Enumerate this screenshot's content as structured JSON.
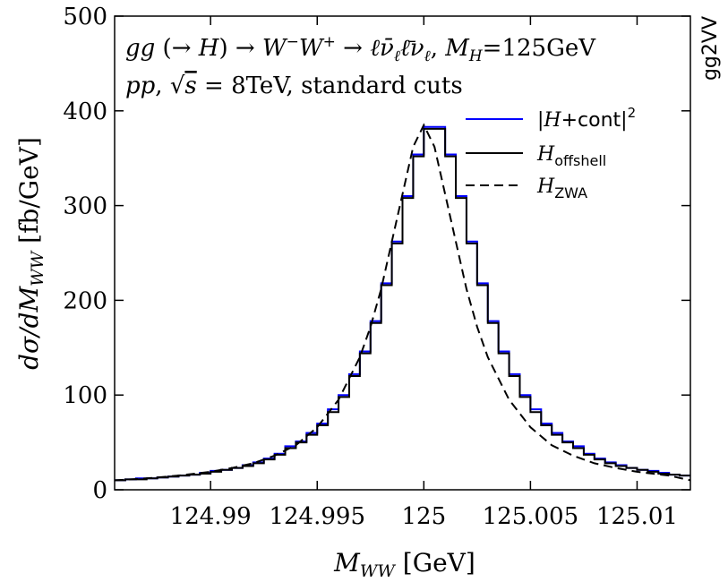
{
  "chart_data": {
    "type": "line",
    "xlabel": "M_WW [GeV]",
    "ylabel": "dσ/dM_WW [fb/GeV]",
    "xlim": [
      124.9855,
      125.0125
    ],
    "ylim": [
      0,
      500
    ],
    "xticks": [
      124.99,
      124.995,
      125,
      125.005,
      125.01
    ],
    "xtick_labels": [
      "124.99",
      "124.995",
      "125",
      "125.005",
      "125.01"
    ],
    "yticks": [
      0,
      100,
      200,
      300,
      400,
      500
    ],
    "ytick_labels": [
      "0",
      "100",
      "200",
      "300",
      "400",
      "500"
    ],
    "annotations": [
      "gg (→ H) → W⁻W⁺ → ℓν̄ℓℓ̄νℓ, MH=125GeV",
      "pp, √s = 8TeV, standard cuts"
    ],
    "side_label": "gg2VV",
    "grid": false,
    "legend_position": "top-right",
    "legend": [
      {
        "label": "|H+cont|²",
        "color": "#0000ff",
        "style": "solid"
      },
      {
        "label": "H_offshell",
        "color": "#000000",
        "style": "solid"
      },
      {
        "label": "H_ZWA",
        "color": "#000000",
        "style": "dashed"
      }
    ],
    "bin_width": 0.0005,
    "series": [
      {
        "name": "|H+cont|²",
        "style": "step",
        "color": "#0000ff",
        "x_bin_edges": [
          124.9855,
          124.986,
          124.9865,
          124.987,
          124.9875,
          124.988,
          124.9885,
          124.989,
          124.9895,
          124.99,
          124.9905,
          124.991,
          124.9915,
          124.992,
          124.9925,
          124.993,
          124.9935,
          124.994,
          124.9945,
          124.995,
          124.9955,
          124.996,
          124.9965,
          124.997,
          124.9975,
          124.998,
          124.9985,
          124.999,
          124.9995,
          125.0,
          125.0005,
          125.001,
          125.0015,
          125.002,
          125.0025,
          125.003,
          125.0035,
          125.004,
          125.0045,
          125.005,
          125.0055,
          125.006,
          125.0065,
          125.007,
          125.0075,
          125.008,
          125.0085,
          125.009,
          125.0095,
          125.01,
          125.0105,
          125.011,
          125.0115,
          125.012,
          125.0125
        ],
        "y": [
          10,
          11,
          12,
          12,
          13,
          14,
          15,
          16,
          18,
          20,
          21,
          23,
          26,
          29,
          33,
          38,
          46,
          51,
          60,
          70,
          85,
          100,
          122,
          146,
          178,
          218,
          262,
          310,
          354,
          383,
          383,
          354,
          310,
          262,
          218,
          178,
          146,
          122,
          100,
          85,
          70,
          60,
          51,
          46,
          38,
          33,
          29,
          26,
          23,
          21,
          20,
          18,
          16,
          15
        ]
      },
      {
        "name": "H_offshell",
        "style": "step",
        "color": "#000000",
        "x_bin_edges": [
          124.9855,
          124.986,
          124.9865,
          124.987,
          124.9875,
          124.988,
          124.9885,
          124.989,
          124.9895,
          124.99,
          124.9905,
          124.991,
          124.9915,
          124.992,
          124.9925,
          124.993,
          124.9935,
          124.994,
          124.9945,
          124.995,
          124.9955,
          124.996,
          124.9965,
          124.997,
          124.9975,
          124.998,
          124.9985,
          124.999,
          124.9995,
          125.0,
          125.0005,
          125.001,
          125.0015,
          125.002,
          125.0025,
          125.003,
          125.0035,
          125.004,
          125.0045,
          125.005,
          125.0055,
          125.006,
          125.0065,
          125.007,
          125.0075,
          125.008,
          125.0085,
          125.009,
          125.0095,
          125.01,
          125.0105,
          125.011,
          125.0115,
          125.012,
          125.0125
        ],
        "y": [
          10,
          11,
          11,
          12,
          13,
          14,
          15,
          16,
          17,
          19,
          21,
          23,
          25,
          28,
          32,
          37,
          44,
          50,
          58,
          68,
          82,
          98,
          120,
          144,
          176,
          216,
          260,
          308,
          352,
          381,
          381,
          352,
          308,
          260,
          216,
          176,
          144,
          120,
          98,
          82,
          68,
          58,
          50,
          44,
          37,
          32,
          28,
          25,
          23,
          21,
          19,
          17,
          16,
          15
        ]
      },
      {
        "name": "H_ZWA",
        "style": "dashed-curve",
        "color": "#000000",
        "x": [
          124.9855,
          124.987,
          124.9885,
          124.99,
          124.991,
          124.992,
          124.993,
          124.994,
          124.995,
          124.996,
          124.997,
          124.9975,
          124.998,
          124.9985,
          124.999,
          124.9995,
          125.0,
          125.0005,
          125.001,
          125.0015,
          125.002,
          125.0025,
          125.003,
          125.004,
          125.005,
          125.006,
          125.007,
          125.008,
          125.009,
          125.01,
          125.0115,
          125.0125
        ],
        "y": [
          10,
          12,
          15,
          19,
          23,
          28,
          36,
          47,
          66,
          95,
          140,
          172,
          212,
          262,
          312,
          362,
          385,
          362,
          312,
          262,
          212,
          172,
          140,
          95,
          66,
          47,
          36,
          28,
          23,
          19,
          15,
          10
        ]
      }
    ]
  }
}
